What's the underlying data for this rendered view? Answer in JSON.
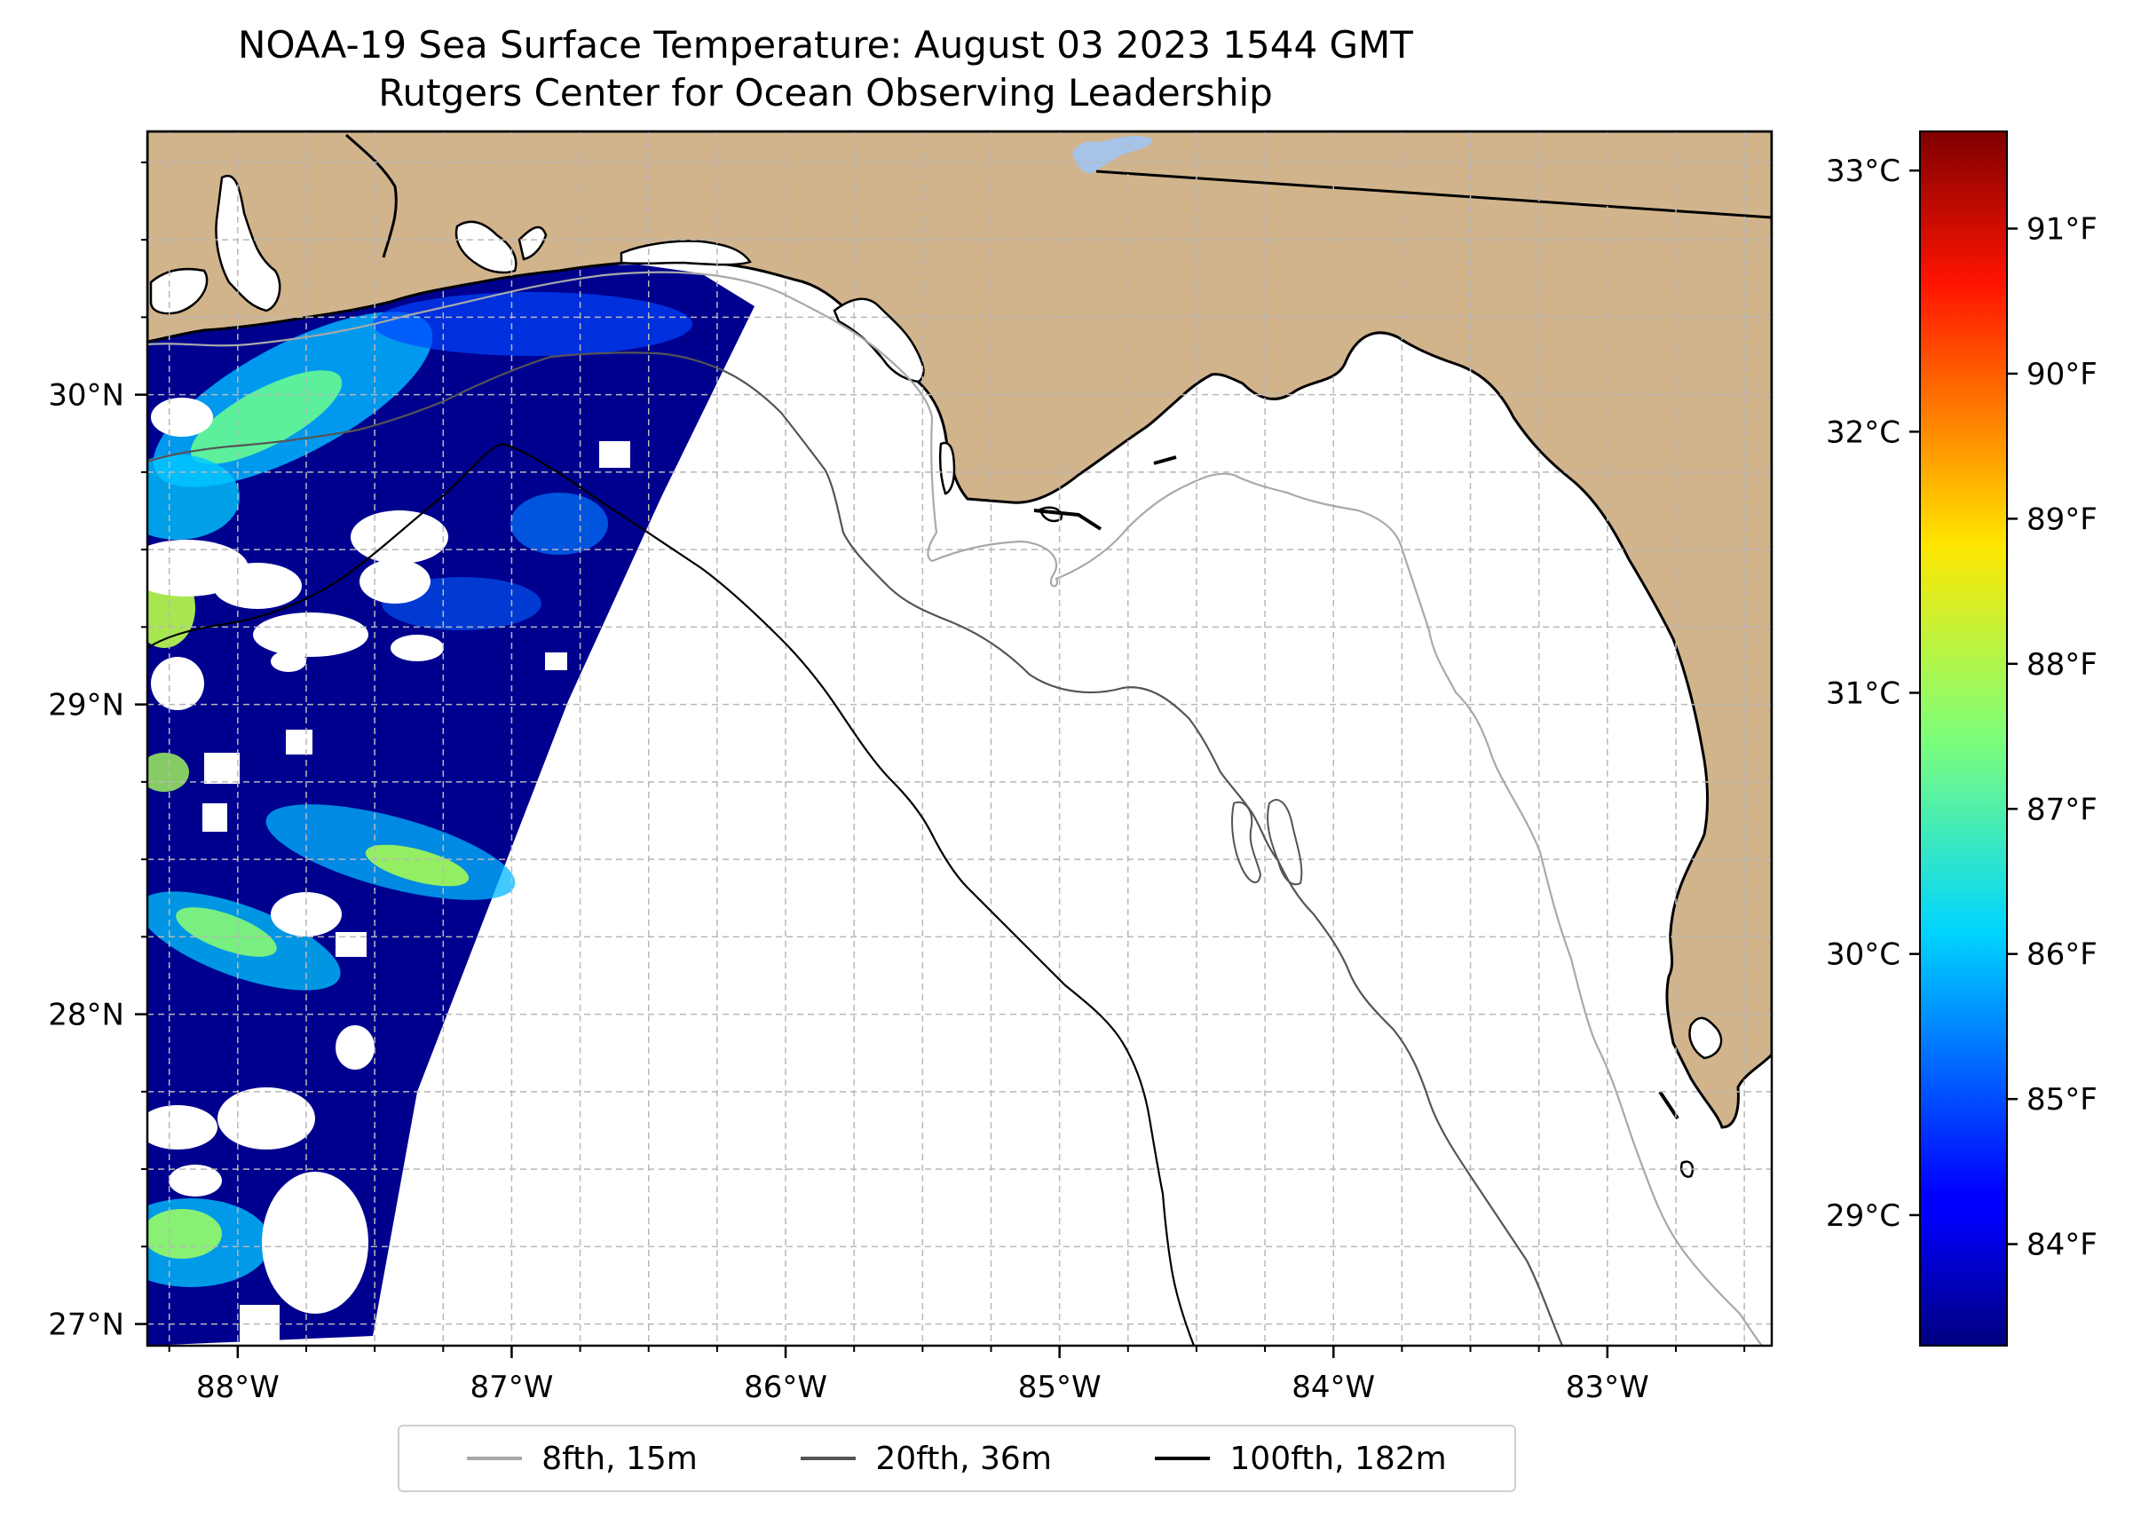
{
  "title": {
    "line1": "NOAA-19 Sea Surface Temperature: August 03 2023 1544 GMT",
    "line2": "Rutgers Center for Ocean Observing Leadership"
  },
  "map": {
    "lon_range": [
      -88.33,
      -82.4
    ],
    "lat_range": [
      26.93,
      30.85
    ],
    "land_color": "#d2b48c",
    "lake_color": "#a6c3e8",
    "grid_color": "#b8b8b8",
    "lon_ticks": [
      {
        "value": -88,
        "label": "88°W"
      },
      {
        "value": -87,
        "label": "87°W"
      },
      {
        "value": -86,
        "label": "86°W"
      },
      {
        "value": -85,
        "label": "85°W"
      },
      {
        "value": -84,
        "label": "84°W"
      },
      {
        "value": -83,
        "label": "83°W"
      }
    ],
    "lat_ticks": [
      {
        "value": 30,
        "label": "30°N"
      },
      {
        "value": 29,
        "label": "29°N"
      },
      {
        "value": 28,
        "label": "28°N"
      },
      {
        "value": 27,
        "label": "27°N"
      }
    ]
  },
  "colorbar": {
    "colormap": "jet",
    "celsius_range": [
      28.5,
      33.15
    ],
    "celsius_ticks": [
      {
        "value": 29,
        "label": "29°C"
      },
      {
        "value": 30,
        "label": "30°C"
      },
      {
        "value": 31,
        "label": "31°C"
      },
      {
        "value": 32,
        "label": "32°C"
      },
      {
        "value": 33,
        "label": "33°C"
      }
    ],
    "fahrenheit_ticks": [
      {
        "value": 84,
        "label": "84°F"
      },
      {
        "value": 85,
        "label": "85°F"
      },
      {
        "value": 86,
        "label": "86°F"
      },
      {
        "value": 87,
        "label": "87°F"
      },
      {
        "value": 88,
        "label": "88°F"
      },
      {
        "value": 89,
        "label": "89°F"
      },
      {
        "value": 90,
        "label": "90°F"
      },
      {
        "value": 91,
        "label": "91°F"
      }
    ]
  },
  "legend": [
    {
      "label": "8fth, 15m",
      "color": "#a9a9a9"
    },
    {
      "label": "20fth, 36m",
      "color": "#555555"
    },
    {
      "label": "100fth, 182m",
      "color": "#000000"
    }
  ]
}
